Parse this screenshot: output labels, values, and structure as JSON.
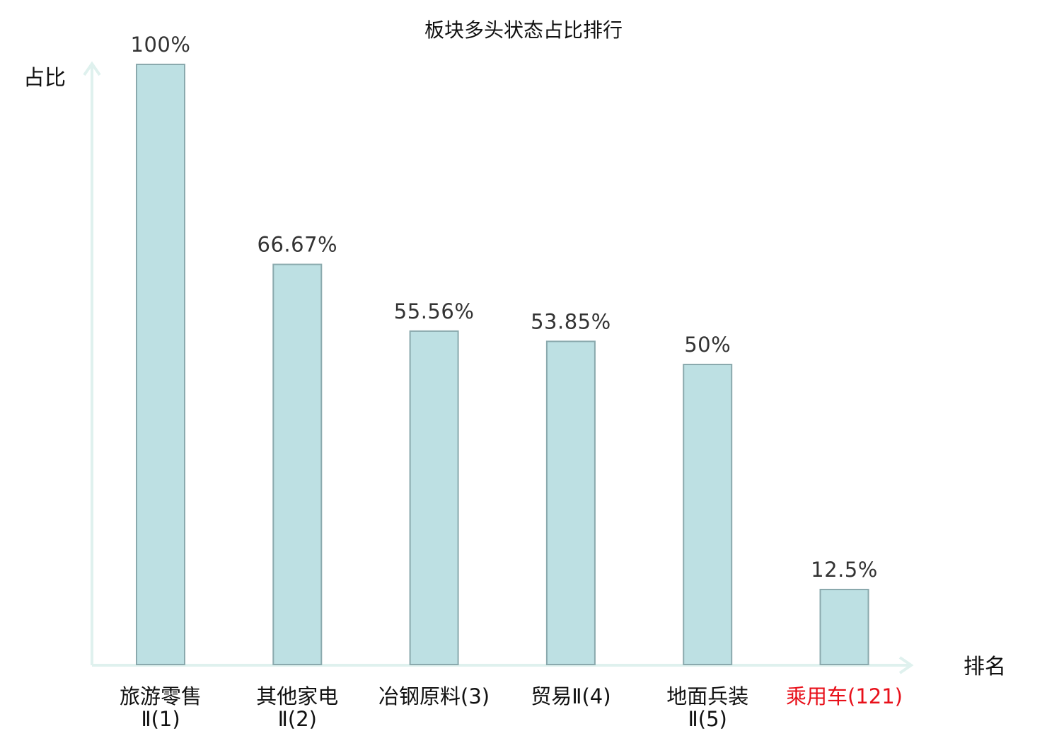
{
  "chart_data": {
    "type": "bar",
    "title": "板块多头状态占比排行",
    "ylabel": "占比",
    "xlabel": "排名",
    "ylim": [
      0,
      100
    ],
    "grid": false,
    "categories": [
      {
        "lines": [
          "旅游零售",
          "Ⅱ(1)"
        ],
        "highlight": false
      },
      {
        "lines": [
          "其他家电",
          "Ⅱ(2)"
        ],
        "highlight": false
      },
      {
        "lines": [
          "冶钢原料(3)"
        ],
        "highlight": false
      },
      {
        "lines": [
          "贸易Ⅱ(4)"
        ],
        "highlight": false
      },
      {
        "lines": [
          "地面兵装",
          "Ⅱ(5)"
        ],
        "highlight": false
      },
      {
        "lines": [
          "乘用车(121)"
        ],
        "highlight": true
      }
    ],
    "values": [
      100,
      66.67,
      55.56,
      53.85,
      50,
      12.5
    ],
    "value_labels": [
      "100%",
      "66.67%",
      "55.56%",
      "53.85%",
      "50%",
      "12.5%"
    ],
    "colors": {
      "bar_fill": "#bde0e3",
      "bar_stroke": "#8aa9ad",
      "axis": "#dff1ee",
      "highlight_text": "#e8101a"
    }
  }
}
